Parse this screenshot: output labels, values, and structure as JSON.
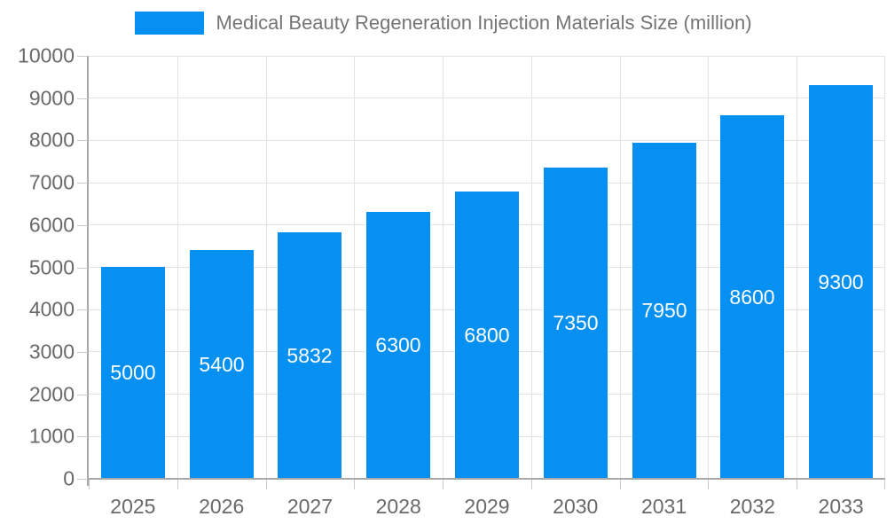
{
  "chart_data": {
    "type": "bar",
    "title": "Medical Beauty Regeneration Injection Materials Size (million)",
    "legend": {
      "label": "Medical Beauty Regeneration Injection Materials Size (million)",
      "position": "top-center"
    },
    "categories": [
      "2025",
      "2026",
      "2027",
      "2028",
      "2029",
      "2030",
      "2031",
      "2032",
      "2033"
    ],
    "series": [
      {
        "name": "Medical Beauty Regeneration Injection Materials Size (million)",
        "values": [
          5000,
          5400,
          5832,
          6300,
          6800,
          7350,
          7950,
          8600,
          9300
        ]
      }
    ],
    "bar_value_labels": [
      "5000",
      "5400",
      "5832",
      "6300",
      "6800",
      "7350",
      "7950",
      "8600",
      "9300"
    ],
    "xlabel": "",
    "ylabel": "",
    "ylim": [
      0,
      10000
    ],
    "yticks": [
      0,
      1000,
      2000,
      3000,
      4000,
      5000,
      6000,
      7000,
      8000,
      9000,
      10000
    ],
    "grid": true,
    "legend_position": "top"
  },
  "colors": {
    "bar": "#0590F2",
    "bar_label": "#FFFFFF",
    "axis_text": "#696969",
    "legend_text": "#757575",
    "gridline": "#E3E3E3",
    "axis_line": "#A8A8A8",
    "tick": "#C9C9C9",
    "background": "#FFFFFF"
  }
}
